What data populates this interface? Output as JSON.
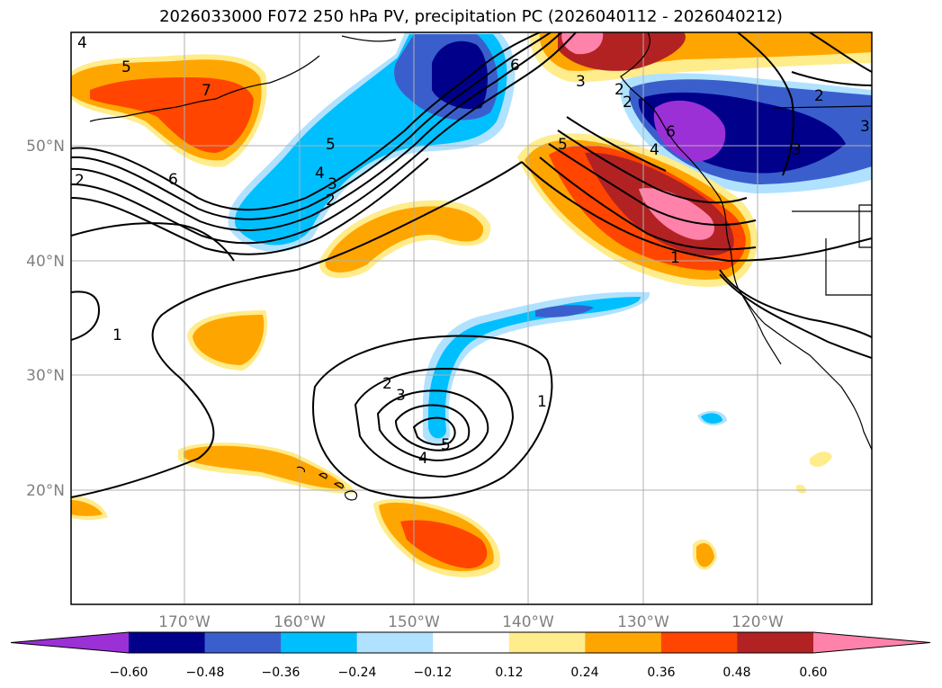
{
  "title": "2026033000 F072 250 hPa PV, precipitation PC (2026040112 - 2026040212)",
  "map": {
    "lon_range": [
      -180,
      -110
    ],
    "lat_range": [
      10,
      60
    ],
    "lon_ticks": [
      {
        "value": -170,
        "label": "170°W"
      },
      {
        "value": -160,
        "label": "160°W"
      },
      {
        "value": -150,
        "label": "150°W"
      },
      {
        "value": -140,
        "label": "140°W"
      },
      {
        "value": -130,
        "label": "130°W"
      },
      {
        "value": -120,
        "label": "120°W"
      }
    ],
    "lat_ticks": [
      {
        "value": 50,
        "label": "50°N"
      },
      {
        "value": 40,
        "label": "40°N"
      },
      {
        "value": 30,
        "label": "30°N"
      },
      {
        "value": 20,
        "label": "20°N"
      }
    ],
    "gridlines": true
  },
  "colorbar": {
    "extend": "both",
    "colors": [
      "#9b30d6",
      "#00008b",
      "#3a5fcd",
      "#00bfff",
      "#b0e2ff",
      "#ffffff",
      "#ffec8b",
      "#ffa500",
      "#ff4500",
      "#b22222",
      "#ff82ab"
    ],
    "tick_labels": [
      "−0.60",
      "−0.48",
      "−0.36",
      "−0.24",
      "−0.12",
      "0.12",
      "0.24",
      "0.36",
      "0.48",
      "0.60"
    ]
  },
  "contour_labels": [
    "4",
    "5",
    "7",
    "6",
    "5",
    "4",
    "3",
    "2",
    "6",
    "5",
    "6",
    "4",
    "3",
    "2",
    "2",
    "3",
    "1",
    "1",
    "2",
    "3",
    "4",
    "5",
    "1",
    "2",
    "3",
    "2"
  ]
}
